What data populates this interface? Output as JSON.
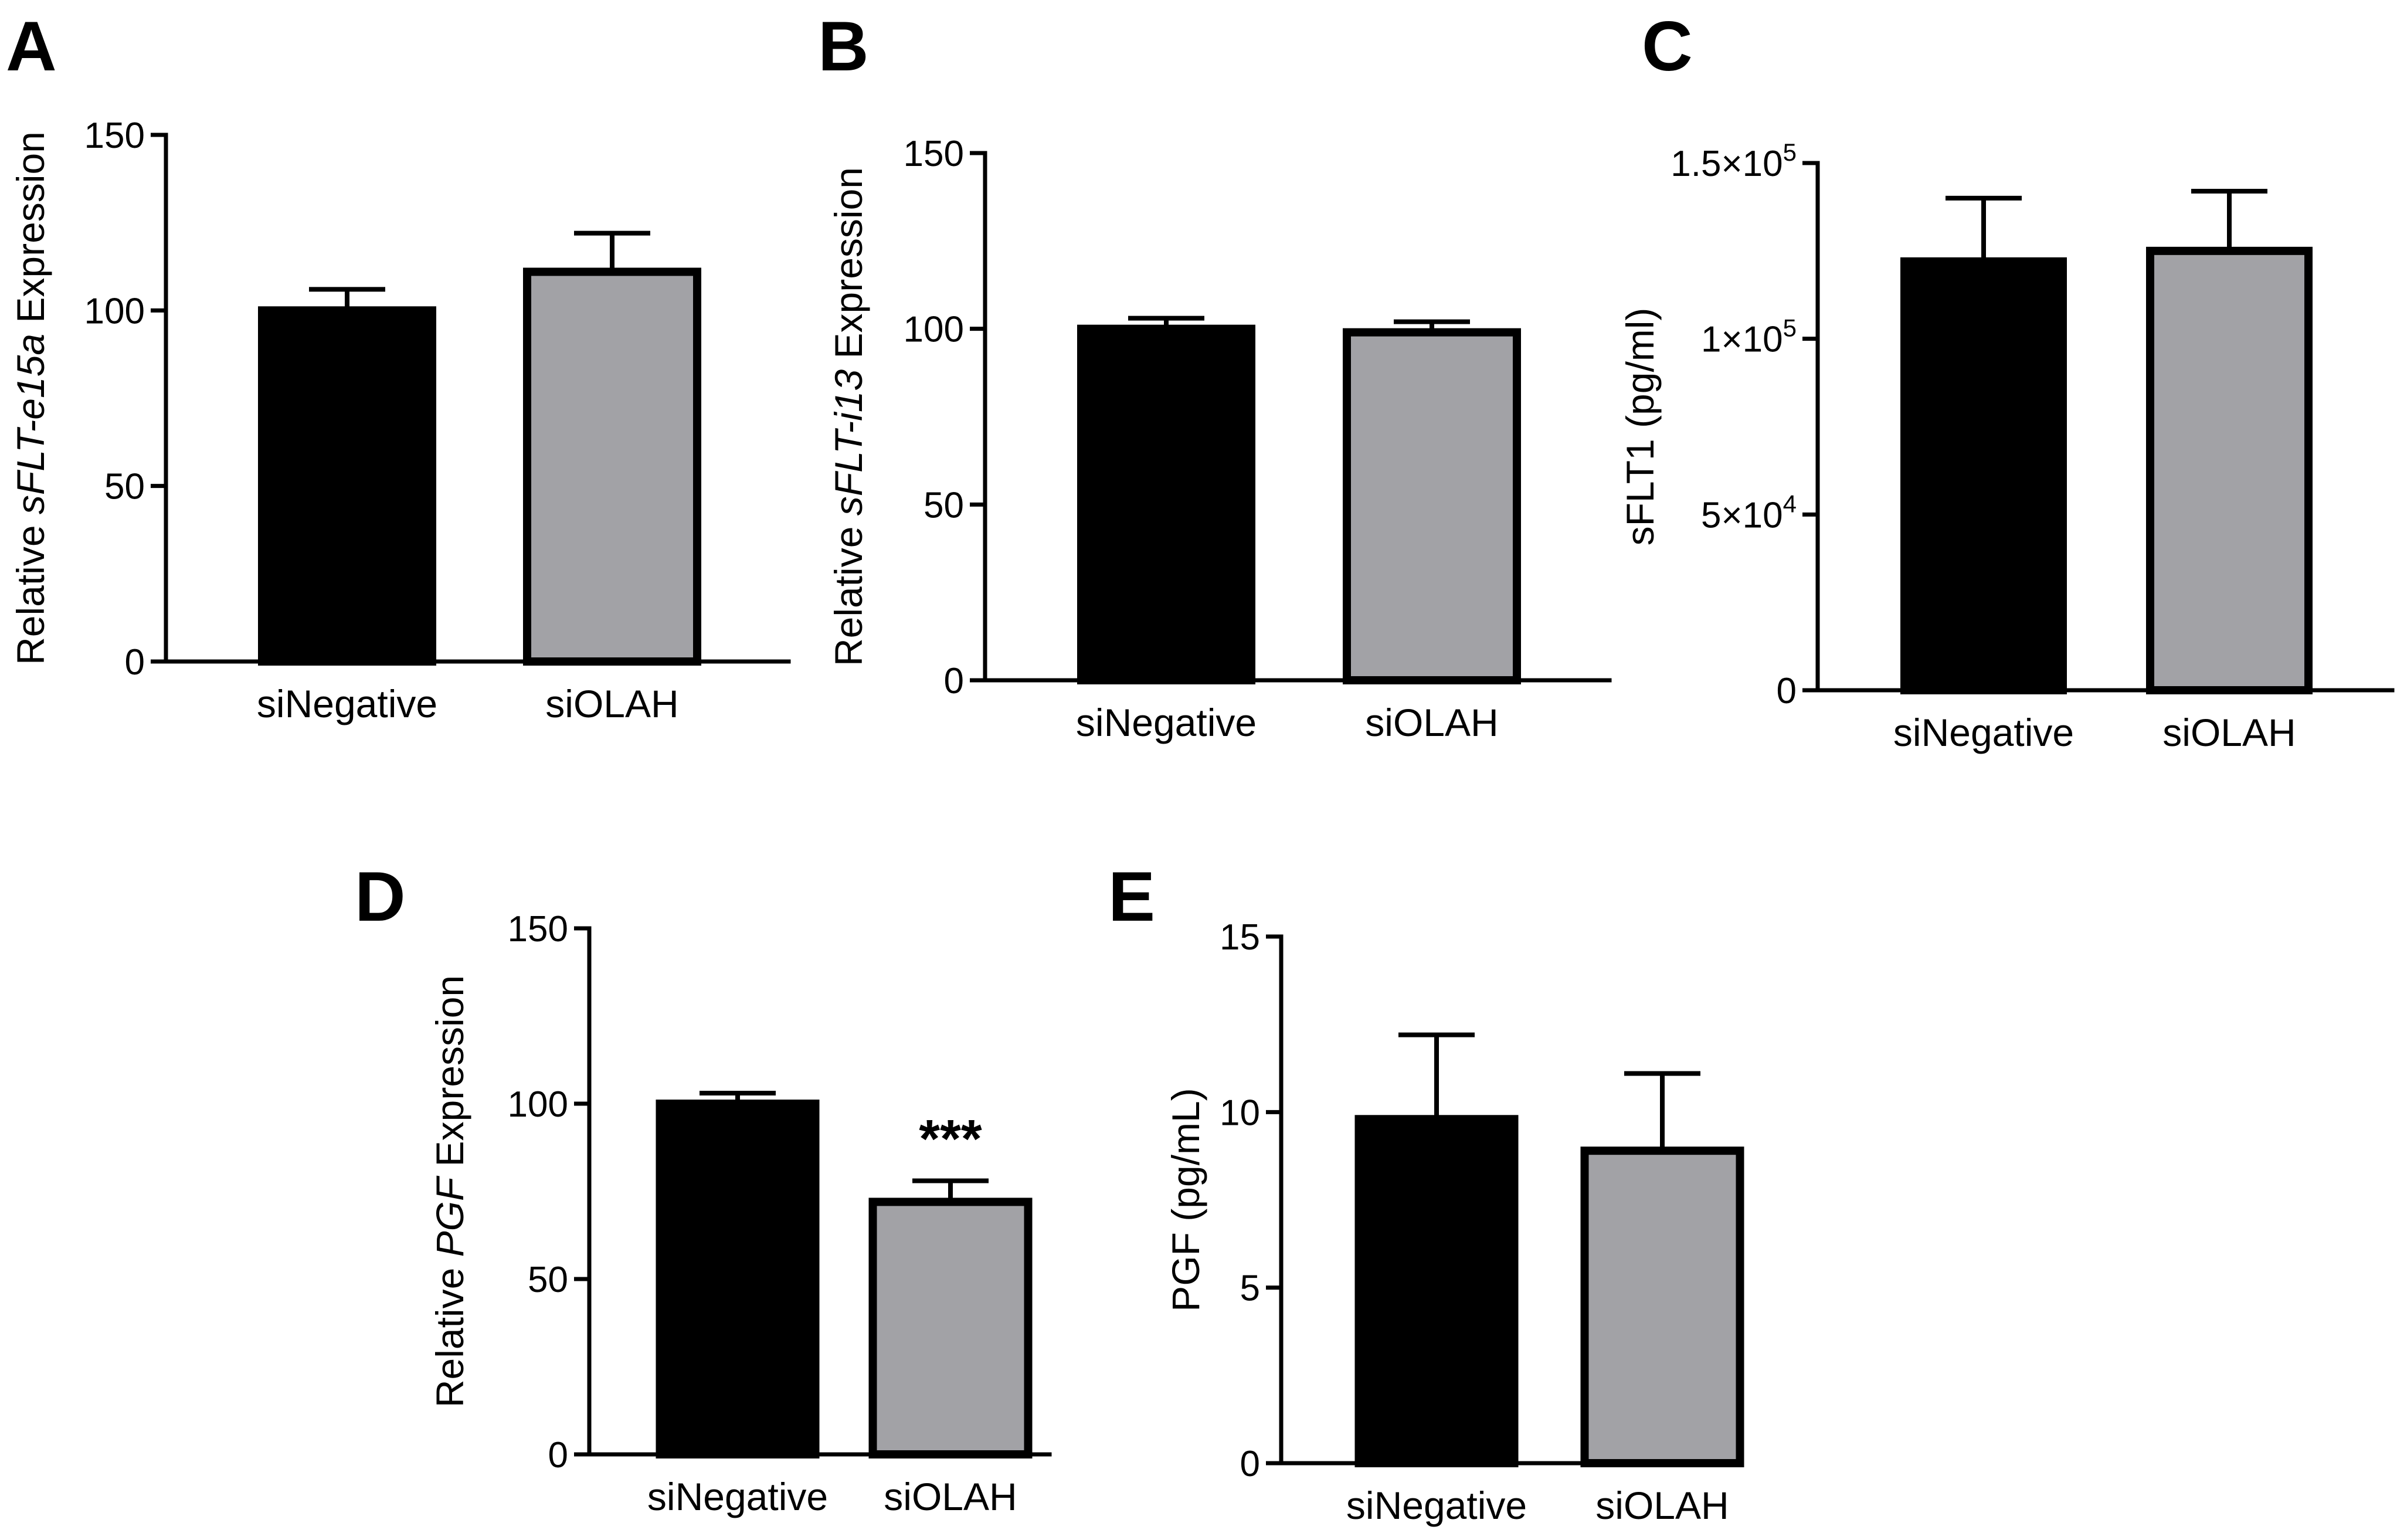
{
  "chart_data": [
    {
      "panel": "A",
      "type": "bar",
      "categories": [
        "siNegative",
        "siOLAH"
      ],
      "values": [
        100,
        111
      ],
      "errors": [
        6,
        11
      ],
      "colors": [
        "#000000",
        "#a2a2a6"
      ],
      "ylabel_parts": [
        {
          "text": "Relative ",
          "italic": false
        },
        {
          "text": "sFLT-e15a",
          "italic": true
        },
        {
          "text": " Expression",
          "italic": false
        }
      ],
      "ylim": [
        0,
        150
      ],
      "yticks": [
        {
          "value": 0,
          "label": "0"
        },
        {
          "value": 50,
          "label": "50"
        },
        {
          "value": 100,
          "label": "100"
        },
        {
          "value": 150,
          "label": "150"
        }
      ],
      "annotation": null
    },
    {
      "panel": "B",
      "type": "bar",
      "categories": [
        "siNegative",
        "siOLAH"
      ],
      "values": [
        100,
        99
      ],
      "errors": [
        3,
        3
      ],
      "colors": [
        "#000000",
        "#a2a2a6"
      ],
      "ylabel_parts": [
        {
          "text": "Relative ",
          "italic": false
        },
        {
          "text": "sFLT-i13",
          "italic": true
        },
        {
          "text": " Expression",
          "italic": false
        }
      ],
      "ylim": [
        0,
        150
      ],
      "yticks": [
        {
          "value": 0,
          "label": "0"
        },
        {
          "value": 50,
          "label": "50"
        },
        {
          "value": 100,
          "label": "100"
        },
        {
          "value": 150,
          "label": "150"
        }
      ],
      "annotation": null
    },
    {
      "panel": "C",
      "type": "bar",
      "categories": [
        "siNegative",
        "siOLAH"
      ],
      "values": [
        122000,
        125000
      ],
      "errors": [
        18000,
        17000
      ],
      "colors": [
        "#000000",
        "#a2a2a6"
      ],
      "ylabel_parts": [
        {
          "text": "sFLT1 (pg/ml)",
          "italic": false
        }
      ],
      "ylim": [
        0,
        150000
      ],
      "yticks": [
        {
          "value": 0,
          "label": "0"
        },
        {
          "value": 50000,
          "label": "5×10",
          "exp": "4"
        },
        {
          "value": 100000,
          "label": "1×10",
          "exp": "5"
        },
        {
          "value": 150000,
          "label": "1.5×10",
          "exp": "5"
        }
      ],
      "annotation": null
    },
    {
      "panel": "D",
      "type": "bar",
      "categories": [
        "siNegative",
        "siOLAH"
      ],
      "values": [
        100,
        72
      ],
      "errors": [
        3,
        6
      ],
      "colors": [
        "#000000",
        "#a2a2a6"
      ],
      "ylabel_parts": [
        {
          "text": "Relative ",
          "italic": false
        },
        {
          "text": "PGF",
          "italic": true
        },
        {
          "text": " Expression",
          "italic": false
        }
      ],
      "ylim": [
        0,
        150
      ],
      "yticks": [
        {
          "value": 0,
          "label": "0"
        },
        {
          "value": 50,
          "label": "50"
        },
        {
          "value": 100,
          "label": "100"
        },
        {
          "value": 150,
          "label": "150"
        }
      ],
      "annotation": {
        "category_index": 1,
        "text": "***"
      }
    },
    {
      "panel": "E",
      "type": "bar",
      "categories": [
        "siNegative",
        "siOLAH"
      ],
      "values": [
        9.8,
        8.9
      ],
      "errors": [
        2.4,
        2.2
      ],
      "colors": [
        "#000000",
        "#a2a2a6"
      ],
      "ylabel_parts": [
        {
          "text": "PGF (pg/mL)",
          "italic": false
        }
      ],
      "ylim": [
        0,
        15
      ],
      "yticks": [
        {
          "value": 0,
          "label": "0"
        },
        {
          "value": 5,
          "label": "5"
        },
        {
          "value": 10,
          "label": "10"
        },
        {
          "value": 15,
          "label": "15"
        }
      ],
      "annotation": null
    }
  ]
}
